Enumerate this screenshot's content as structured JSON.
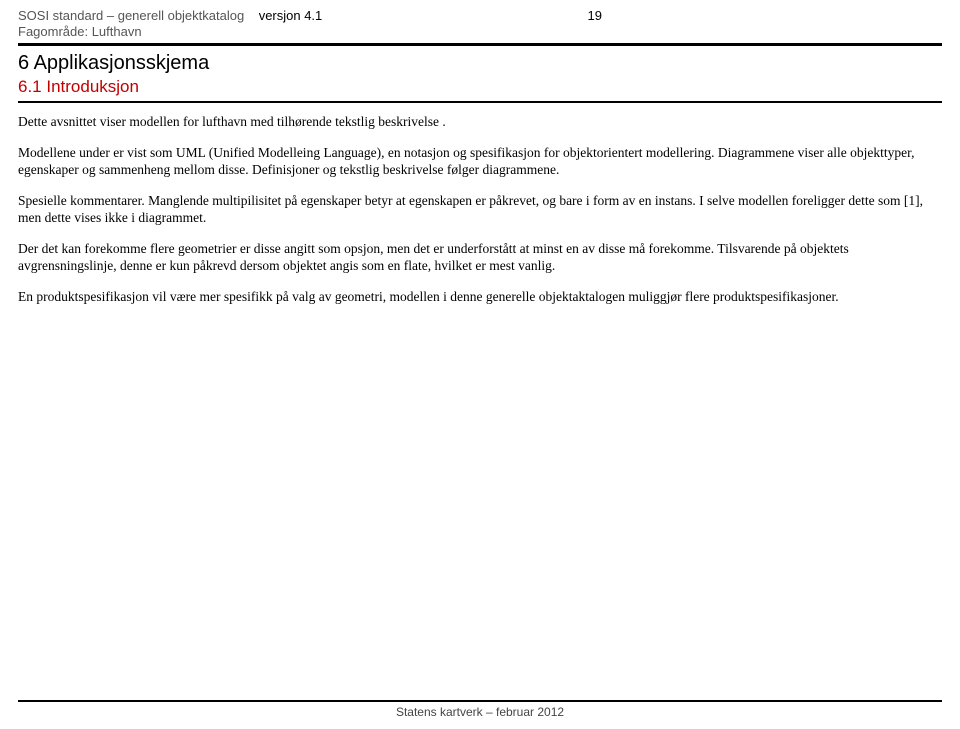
{
  "header": {
    "title_gray": "SOSI standard – generell objektkatalog",
    "version_label": "versjon 4.1",
    "page_number": "19",
    "subtitle": "Fagområde: Lufthavn"
  },
  "section": {
    "h1": "6  Applikasjonsskjema",
    "h2": "6.1  Introduksjon"
  },
  "paragraphs": {
    "p1": "Dette avsnittet viser modellen for lufthavn med tilhørende tekstlig beskrivelse .",
    "p2": "Modellene under er vist som UML (Unified Modelleing Language), en notasjon og spesifikasjon for objektorientert modellering. Diagrammene viser alle objekttyper, egenskaper og sammenheng mellom disse. Definisjoner og tekstlig beskrivelse følger diagrammene.",
    "p3": "Spesielle kommentarer. Manglende multipilisitet på egenskaper betyr at egenskapen er påkrevet, og bare i form av en instans. I selve modellen foreligger dette som [1], men dette vises ikke i diagrammet.",
    "p4": "Der det kan forekomme flere geometrier er disse angitt som opsjon, men det er underforstått at minst en av disse må forekomme. Tilsvarende på objektets avgrensningslinje, denne er kun påkrevd dersom objektet angis som en flate, hvilket er mest vanlig.",
    "p5": "En produktspesifikasjon vil være mer spesifikk på valg av geometri, modellen i denne generelle objektaktalogen muliggjør flere produktspesifikasjoner."
  },
  "footer": {
    "text": "Statens kartverk – februar 2012"
  },
  "colors": {
    "heading_red": "#c00000",
    "text_gray": "#555555",
    "rule": "#000000",
    "background": "#ffffff"
  }
}
